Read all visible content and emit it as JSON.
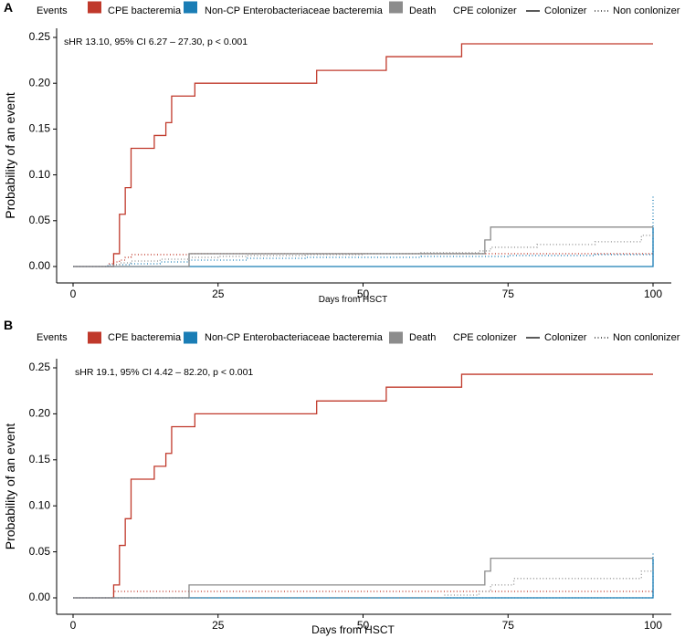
{
  "colors": {
    "cpe": "#c0392b",
    "noncp": "#1a7db5",
    "death": "#8c8c8c",
    "axis": "#000000"
  },
  "legend": {
    "events_title": "Events",
    "events": [
      "CPE bacteremia",
      "Non-CP Enterobacteriaceae bacteremia",
      "Death"
    ],
    "colonizer_title": "CPE colonizer",
    "linetypes": [
      "Colonizer",
      "Non conlonizer"
    ]
  },
  "chart_data": [
    {
      "type": "line",
      "panel_label": "A",
      "annotation": "sHR 13.10, 95% CI 6.27 – 27.30, p < 0.001",
      "xlabel": "Days from HSCT",
      "ylabel": "Probability of an event",
      "xlim": [
        0,
        100
      ],
      "ylim": [
        0,
        0.25
      ],
      "xticks": [
        0,
        25,
        50,
        75,
        100
      ],
      "yticks": [
        0,
        0.05,
        0.1,
        0.15,
        0.2,
        0.25
      ],
      "ytick_labels": [
        "0.00",
        "0.05",
        "0.10",
        "0.15",
        "0.20",
        "0.25"
      ],
      "series": [
        {
          "name": "CPE bacteremia",
          "group": "Colonizer",
          "event": "cpe",
          "style": "solid",
          "x": [
            0,
            7,
            8,
            9,
            10,
            14,
            16,
            17,
            20,
            21,
            42,
            54,
            67,
            100
          ],
          "y": [
            0,
            0.014,
            0.057,
            0.086,
            0.129,
            0.143,
            0.157,
            0.186,
            0.186,
            0.2,
            0.214,
            0.229,
            0.243,
            0.243
          ]
        },
        {
          "name": "CPE bacteremia",
          "group": "Non conlonizer",
          "event": "cpe",
          "style": "dotted",
          "x": [
            0,
            6,
            7,
            8,
            9,
            10,
            20,
            100
          ],
          "y": [
            0,
            0.003,
            0.005,
            0.007,
            0.01,
            0.013,
            0.014,
            0.014
          ]
        },
        {
          "name": "Non-CP Enterobacteriaceae bacteremia",
          "group": "Colonizer",
          "event": "noncp",
          "style": "solid",
          "x": [
            0,
            100,
            100
          ],
          "y": [
            0,
            0,
            0.043
          ]
        },
        {
          "name": "Non-CP Enterobacteriaceae bacteremia",
          "group": "Non conlonizer",
          "event": "noncp",
          "style": "dotted",
          "x": [
            0,
            6,
            10,
            15,
            20,
            30,
            40,
            60,
            75,
            90,
            100,
            100
          ],
          "y": [
            0,
            0.002,
            0.003,
            0.005,
            0.007,
            0.009,
            0.01,
            0.011,
            0.012,
            0.013,
            0.014,
            0.077
          ]
        },
        {
          "name": "Death",
          "group": "Colonizer",
          "event": "death",
          "style": "solid",
          "x": [
            0,
            20,
            71,
            72,
            100
          ],
          "y": [
            0,
            0.014,
            0.029,
            0.043,
            0.043
          ]
        },
        {
          "name": "Death",
          "group": "Non conlonizer",
          "event": "death",
          "style": "dotted",
          "x": [
            0,
            7,
            8,
            10,
            15,
            20,
            25,
            30,
            40,
            50,
            60,
            70,
            72,
            80,
            90,
            98,
            100
          ],
          "y": [
            0,
            0.002,
            0.004,
            0.006,
            0.008,
            0.01,
            0.011,
            0.012,
            0.013,
            0.014,
            0.015,
            0.017,
            0.021,
            0.024,
            0.027,
            0.034,
            0.036
          ]
        }
      ]
    },
    {
      "type": "line",
      "panel_label": "B",
      "annotation": "sHR 19.1, 95% CI 4.42 – 82.20, p < 0.001",
      "xlabel": "Days from HSCT",
      "ylabel": "Probability of an event",
      "xlim": [
        0,
        100
      ],
      "ylim": [
        0,
        0.25
      ],
      "xticks": [
        0,
        25,
        50,
        75,
        100
      ],
      "yticks": [
        0,
        0.05,
        0.1,
        0.15,
        0.2,
        0.25
      ],
      "ytick_labels": [
        "0.00",
        "0.05",
        "0.10",
        "0.15",
        "0.20",
        "0.25"
      ],
      "series": [
        {
          "name": "CPE bacteremia",
          "group": "Colonizer",
          "event": "cpe",
          "style": "solid",
          "x": [
            0,
            7,
            8,
            9,
            10,
            14,
            16,
            17,
            20,
            21,
            42,
            54,
            67,
            100
          ],
          "y": [
            0,
            0.014,
            0.057,
            0.086,
            0.129,
            0.143,
            0.157,
            0.186,
            0.186,
            0.2,
            0.214,
            0.229,
            0.243,
            0.243
          ]
        },
        {
          "name": "CPE bacteremia",
          "group": "Non conlonizer",
          "event": "cpe",
          "style": "dotted",
          "x": [
            0,
            7,
            100
          ],
          "y": [
            0,
            0.007,
            0.007
          ]
        },
        {
          "name": "Non-CP Enterobacteriaceae bacteremia",
          "group": "Colonizer",
          "event": "noncp",
          "style": "solid",
          "x": [
            0,
            100,
            100
          ],
          "y": [
            0,
            0,
            0.043
          ]
        },
        {
          "name": "Non-CP Enterobacteriaceae bacteremia",
          "group": "Non conlonizer",
          "event": "noncp",
          "style": "dotted",
          "x": [
            0,
            100,
            100
          ],
          "y": [
            0,
            0,
            0.05
          ]
        },
        {
          "name": "Death",
          "group": "Colonizer",
          "event": "death",
          "style": "solid",
          "x": [
            0,
            20,
            71,
            72,
            100
          ],
          "y": [
            0,
            0.014,
            0.029,
            0.043,
            0.043
          ]
        },
        {
          "name": "Death",
          "group": "Non conlonizer",
          "event": "death",
          "style": "dotted",
          "x": [
            0,
            64,
            70,
            72,
            76,
            98,
            100
          ],
          "y": [
            0,
            0.003,
            0.007,
            0.014,
            0.021,
            0.029,
            0.036
          ]
        }
      ]
    }
  ]
}
